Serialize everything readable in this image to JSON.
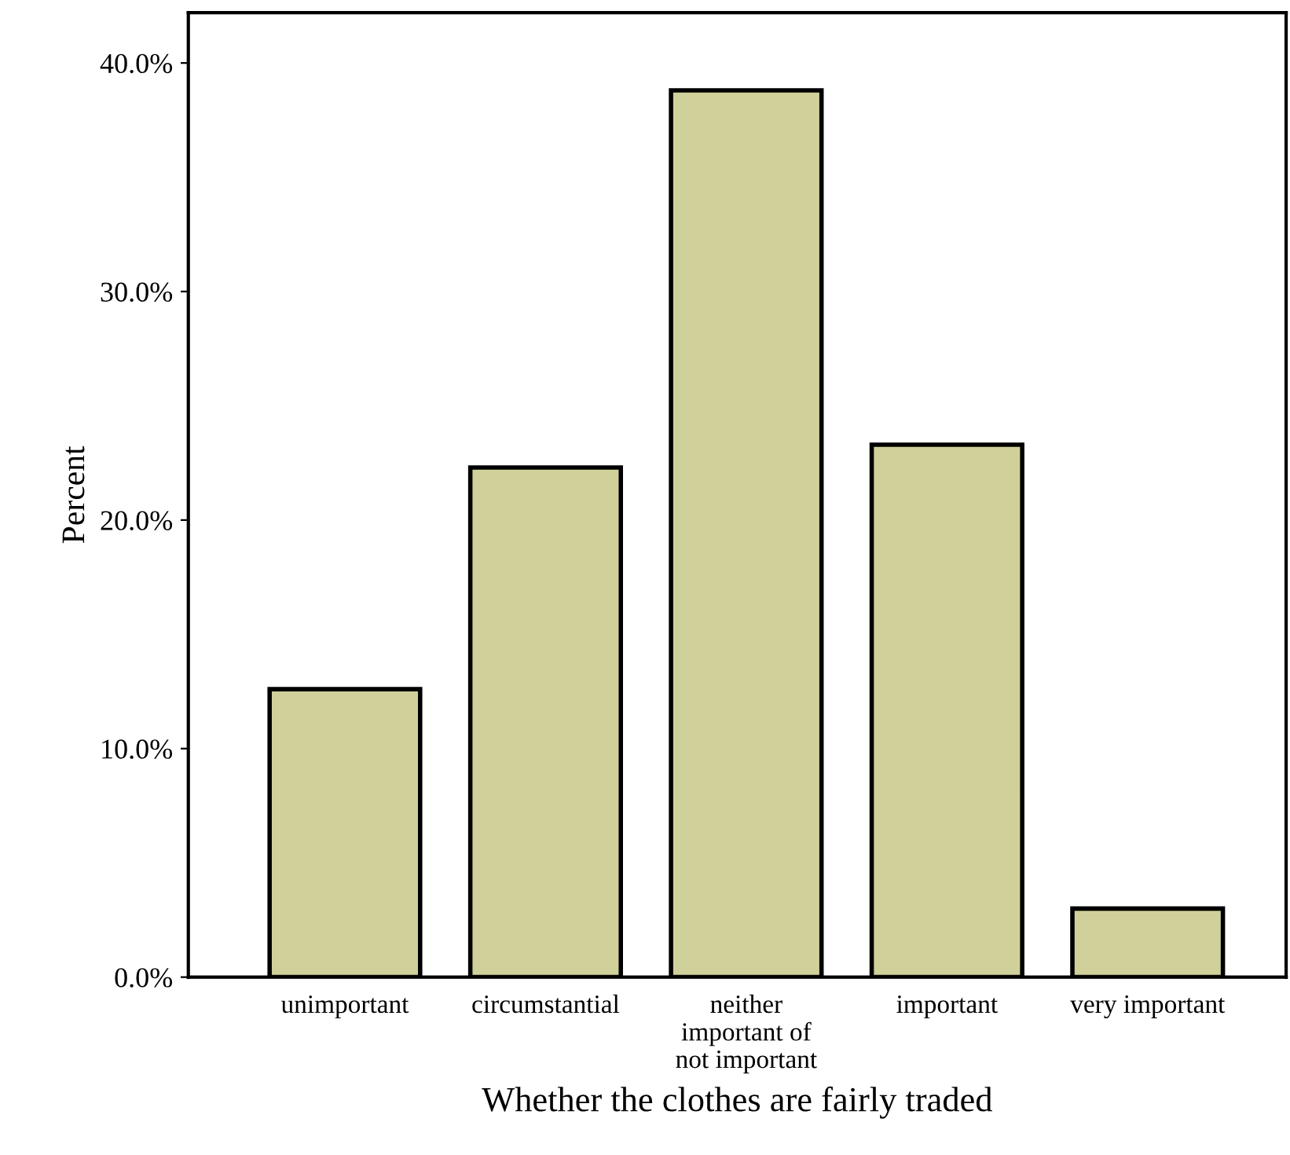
{
  "chart_data": {
    "type": "bar",
    "xlabel": "Whether the clothes are fairly traded",
    "ylabel": "Percent",
    "categories": [
      "unimportant",
      "circumstantial",
      "neither\nimportant of\nnot important",
      "important",
      "very important"
    ],
    "values": [
      12.6,
      22.3,
      38.8,
      23.3,
      3.0
    ],
    "color": "#d0d09a",
    "ylim": [
      0,
      42.2
    ],
    "yticks": [
      {
        "value": 0,
        "label": "0.0%"
      },
      {
        "value": 10,
        "label": "10.0%"
      },
      {
        "value": 20,
        "label": "20.0%"
      },
      {
        "value": 30,
        "label": "30.0%"
      },
      {
        "value": 40,
        "label": "40.0%"
      }
    ],
    "grid": false
  }
}
